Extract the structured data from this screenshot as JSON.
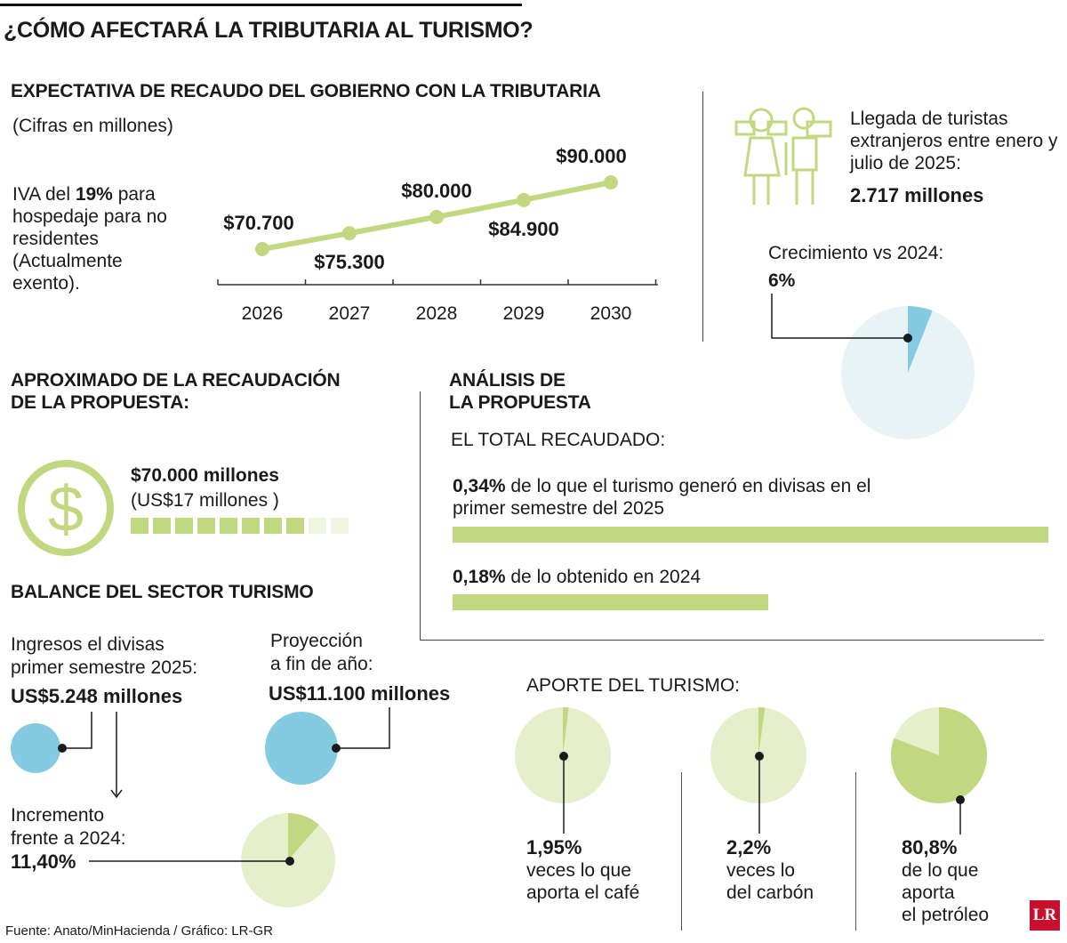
{
  "title": "¿CÓMO AFECTARÁ LA TRIBUTARIA AL TURISMO?",
  "colors": {
    "green": "#c2d880",
    "pale_green": "#e6efcb",
    "blue": "#84cbe1",
    "pale_blue": "#e7f3f5",
    "text": "#1a1a1a"
  },
  "expectativa": {
    "heading": "EXPECTATIVA DE RECAUDO DEL GOBIERNO CON LA TRIBUTARIA",
    "sub": "(Cifras en millones)",
    "iva_prefix": "IVA del ",
    "iva_bold": "19%",
    "iva_rest": " para hospedaje para no residentes (Actualmente exento)."
  },
  "chart_data": [
    {
      "type": "line",
      "title": "EXPECTATIVA DE RECAUDO DEL GOBIERNO CON LA TRIBUTARIA",
      "subtitle": "(Cifras en millones)",
      "categories": [
        "2026",
        "2027",
        "2028",
        "2029",
        "2030"
      ],
      "values": [
        70700,
        75300,
        80000,
        84900,
        90000
      ],
      "labels": [
        "$70.700",
        "$75.300",
        "$80.000",
        "$84.900",
        "$90.000"
      ],
      "ylim": [
        60000,
        95000
      ]
    },
    {
      "type": "pie",
      "title": "Crecimiento vs 2024:",
      "values": [
        6,
        94
      ],
      "label": "6%"
    },
    {
      "type": "bar",
      "title": "EL TOTAL RECAUDADO:",
      "categories": [
        "0,34%",
        "0,18%"
      ],
      "values": [
        0.34,
        0.18
      ]
    },
    {
      "type": "pie",
      "title": "Incremento frente a 2024:",
      "values": [
        11.4,
        88.6
      ],
      "label": "11,40%"
    },
    {
      "type": "pie",
      "title": "APORTE DEL TURISMO:",
      "series": [
        {
          "name": "café",
          "values": [
            1.95,
            98.05
          ],
          "label": "1,95%"
        },
        {
          "name": "carbón",
          "values": [
            2.2,
            97.8
          ],
          "label": "2,2%"
        },
        {
          "name": "petróleo",
          "values": [
            80.8,
            19.2
          ],
          "label": "80,8%"
        }
      ]
    }
  ],
  "turistas": {
    "text": "Llegada de turistas extranjeros entre enero y julio de 2025:",
    "value": "2.717 millones",
    "growth_label": "Crecimiento vs 2024:",
    "growth_value": "6%"
  },
  "aproximado": {
    "heading_1": "APROXIMADO DE LA RECAUDACIÓN",
    "heading_2": "DE LA PROPUESTA:",
    "amount": "$70.000 millones",
    "usd": "(US$17 millones )",
    "blocks_total": 10,
    "blocks_filled": 8
  },
  "analisis": {
    "heading_1": "ANÁLISIS DE",
    "heading_2": "LA PROPUESTA",
    "sub": "EL TOTAL RECAUDADO:",
    "item1_bold": "0,34%",
    "item1_line1": " de lo que el turismo generó en divisas en el",
    "item1_line2": "primer semestre del 2025",
    "item2_bold": "0,18%",
    "item2_text": " de lo obtenido en 2024"
  },
  "balance": {
    "heading": "BALANCE DEL SECTOR TURISMO",
    "ingresos_1": "Ingresos el divisas",
    "ingresos_2": "primer semestre 2025:",
    "ingresos_value": "US$5.248 millones",
    "proyeccion_1": "Proyección",
    "proyeccion_2": "a fin de año:",
    "proyeccion_value": "US$11.100 millones",
    "incremento_1": "Incremento",
    "incremento_2": "frente a 2024:",
    "incremento_value": "11,40%"
  },
  "aporte": {
    "heading": "APORTE DEL TURISMO:",
    "items": [
      {
        "value": "1,95%",
        "line1": "veces lo que",
        "line2": "aporta el café",
        "line3": ""
      },
      {
        "value": "2,2%",
        "line1": "veces lo",
        "line2": "del carbón",
        "line3": ""
      },
      {
        "value": "80,8%",
        "line1": "de lo que",
        "line2": "aporta",
        "line3": "el petróleo"
      }
    ]
  },
  "footer": {
    "source": "Fuente: Anato/MinHacienda / Gráfico: LR-GR",
    "logo": "LR"
  }
}
